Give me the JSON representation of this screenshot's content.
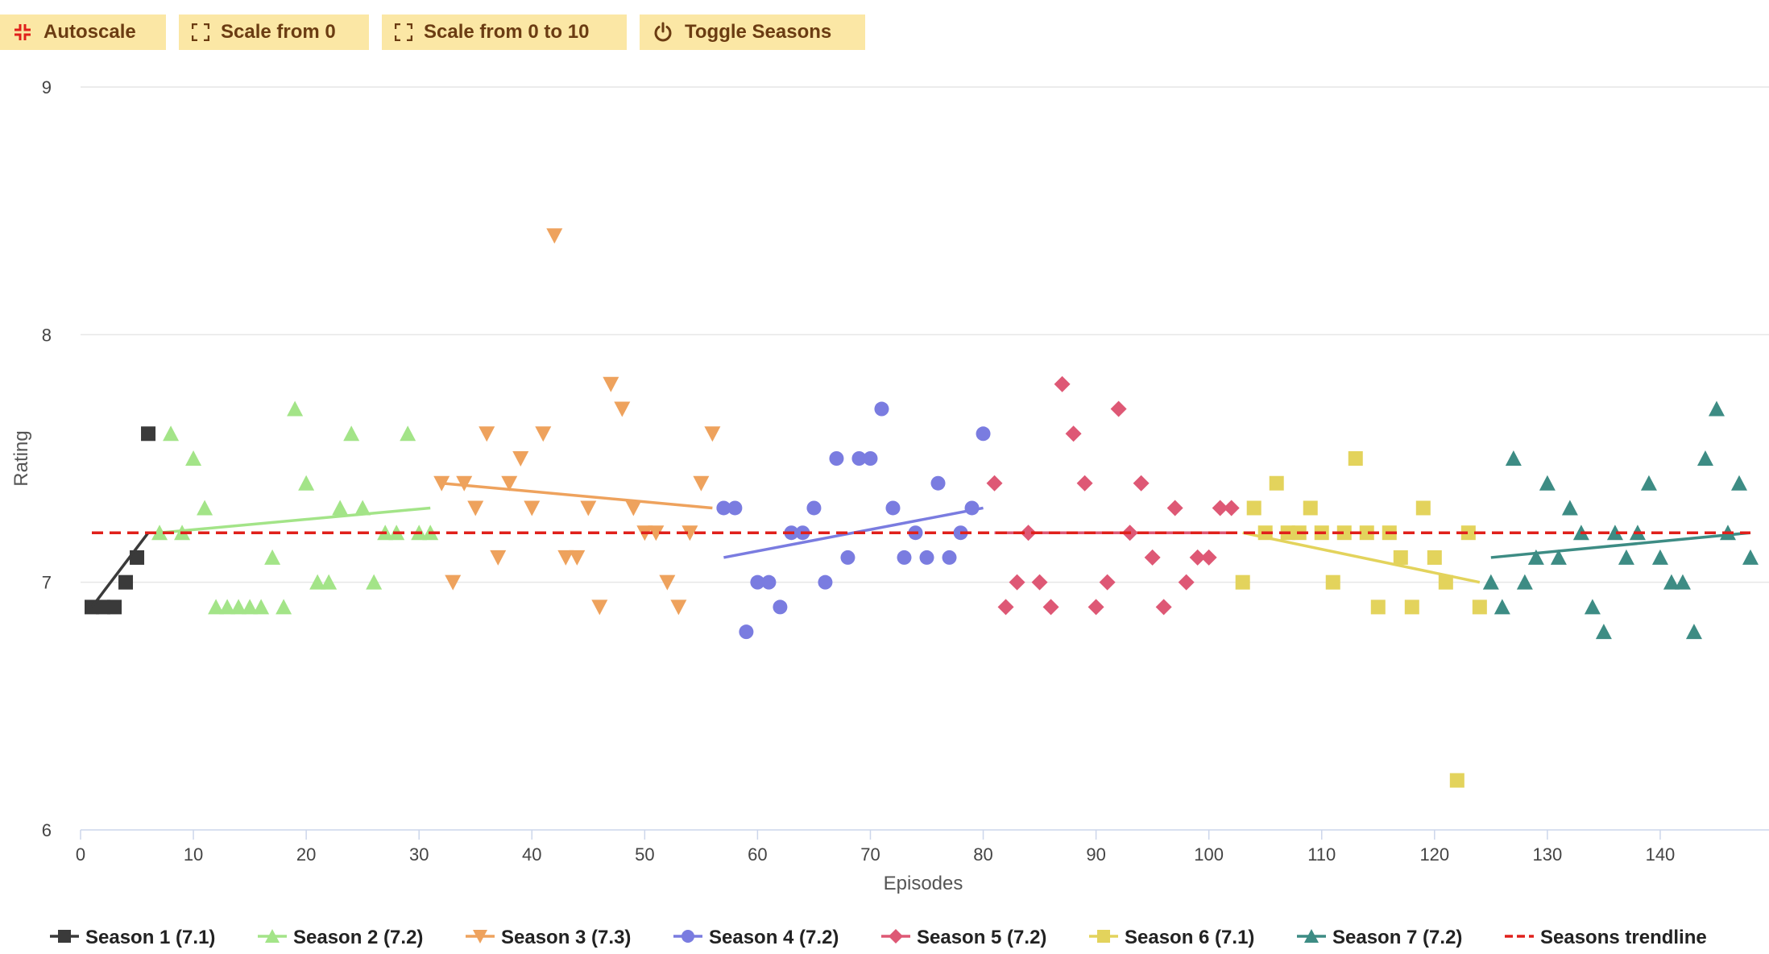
{
  "toolbar": [
    {
      "label": "Autoscale",
      "icon": "shrink-icon"
    },
    {
      "label": "Scale from 0",
      "icon": "expand-icon"
    },
    {
      "label": "Scale from 0 to 10",
      "icon": "expand-icon"
    },
    {
      "label": "Toggle Seasons",
      "icon": "power-icon"
    }
  ],
  "chart_data": {
    "type": "scatter",
    "title": "",
    "xlabel": "Episodes",
    "ylabel": "Rating",
    "xlim": [
      0,
      149
    ],
    "ylim": [
      6,
      9
    ],
    "xticks": [
      0,
      10,
      20,
      30,
      40,
      50,
      60,
      70,
      80,
      90,
      100,
      110,
      120,
      130,
      140
    ],
    "yticks": [
      6,
      7,
      8,
      9
    ],
    "grid": "horizontal",
    "legend_position": "bottom",
    "series": [
      {
        "name": "Season 1 (7.1)",
        "color": "#3a3a3a",
        "marker": "square",
        "points": [
          [
            1,
            6.9
          ],
          [
            2,
            6.9
          ],
          [
            3,
            6.9
          ],
          [
            4,
            7.0
          ],
          [
            5,
            7.1
          ],
          [
            6,
            7.6
          ]
        ],
        "trend": [
          [
            1,
            6.9
          ],
          [
            6,
            7.2
          ]
        ]
      },
      {
        "name": "Season 2 (7.2)",
        "color": "#a3e488",
        "marker": "triangle-up",
        "points": [
          [
            7,
            7.2
          ],
          [
            8,
            7.6
          ],
          [
            9,
            7.2
          ],
          [
            10,
            7.5
          ],
          [
            11,
            7.3
          ],
          [
            12,
            6.9
          ],
          [
            13,
            6.9
          ],
          [
            14,
            6.9
          ],
          [
            15,
            6.9
          ],
          [
            16,
            6.9
          ],
          [
            17,
            7.1
          ],
          [
            18,
            6.9
          ],
          [
            19,
            7.7
          ],
          [
            20,
            7.4
          ],
          [
            21,
            7.0
          ],
          [
            22,
            7.0
          ],
          [
            23,
            7.3
          ],
          [
            24,
            7.6
          ],
          [
            25,
            7.3
          ],
          [
            26,
            7.0
          ],
          [
            27,
            7.2
          ],
          [
            28,
            7.2
          ],
          [
            29,
            7.6
          ],
          [
            30,
            7.2
          ],
          [
            31,
            7.2
          ]
        ],
        "trend": [
          [
            7,
            7.2
          ],
          [
            31,
            7.3
          ]
        ]
      },
      {
        "name": "Season 3 (7.3)",
        "color": "#eea25d",
        "marker": "triangle-down",
        "points": [
          [
            32,
            7.4
          ],
          [
            33,
            7.0
          ],
          [
            34,
            7.4
          ],
          [
            35,
            7.3
          ],
          [
            36,
            7.6
          ],
          [
            37,
            7.1
          ],
          [
            38,
            7.4
          ],
          [
            39,
            7.5
          ],
          [
            40,
            7.3
          ],
          [
            41,
            7.6
          ],
          [
            42,
            8.4
          ],
          [
            43,
            7.1
          ],
          [
            44,
            7.1
          ],
          [
            45,
            7.3
          ],
          [
            46,
            6.9
          ],
          [
            47,
            7.8
          ],
          [
            48,
            7.7
          ],
          [
            49,
            7.3
          ],
          [
            50,
            7.2
          ],
          [
            51,
            7.2
          ],
          [
            52,
            7.0
          ],
          [
            53,
            6.9
          ],
          [
            54,
            7.2
          ],
          [
            55,
            7.4
          ],
          [
            56,
            7.6
          ]
        ],
        "trend": [
          [
            32,
            7.4
          ],
          [
            56,
            7.3
          ]
        ]
      },
      {
        "name": "Season 4 (7.2)",
        "color": "#7a7ce0",
        "marker": "circle",
        "points": [
          [
            57,
            7.3
          ],
          [
            58,
            7.3
          ],
          [
            59,
            6.8
          ],
          [
            60,
            7.0
          ],
          [
            61,
            7.0
          ],
          [
            62,
            6.9
          ],
          [
            63,
            7.2
          ],
          [
            64,
            7.2
          ],
          [
            65,
            7.3
          ],
          [
            66,
            7.0
          ],
          [
            67,
            7.5
          ],
          [
            68,
            7.1
          ],
          [
            69,
            7.5
          ],
          [
            70,
            7.5
          ],
          [
            71,
            7.7
          ],
          [
            72,
            7.3
          ],
          [
            73,
            7.1
          ],
          [
            74,
            7.2
          ],
          [
            75,
            7.1
          ],
          [
            76,
            7.4
          ],
          [
            77,
            7.1
          ],
          [
            78,
            7.2
          ],
          [
            79,
            7.3
          ],
          [
            80,
            7.6
          ]
        ],
        "trend": [
          [
            57,
            7.1
          ],
          [
            80,
            7.3
          ]
        ]
      },
      {
        "name": "Season 5 (7.2)",
        "color": "#de5875",
        "marker": "diamond",
        "points": [
          [
            81,
            7.4
          ],
          [
            82,
            6.9
          ],
          [
            83,
            7.0
          ],
          [
            84,
            7.2
          ],
          [
            85,
            7.0
          ],
          [
            86,
            6.9
          ],
          [
            87,
            7.8
          ],
          [
            88,
            7.6
          ],
          [
            89,
            7.4
          ],
          [
            90,
            6.9
          ],
          [
            91,
            7.0
          ],
          [
            92,
            7.7
          ],
          [
            93,
            7.2
          ],
          [
            94,
            7.4
          ],
          [
            95,
            7.1
          ],
          [
            96,
            6.9
          ],
          [
            97,
            7.3
          ],
          [
            98,
            7.0
          ],
          [
            99,
            7.1
          ],
          [
            100,
            7.1
          ],
          [
            101,
            7.3
          ],
          [
            102,
            7.3
          ]
        ],
        "trend": [
          [
            81,
            7.2
          ],
          [
            102,
            7.2
          ]
        ]
      },
      {
        "name": "Season 6 (7.1)",
        "color": "#e3d35c",
        "marker": "square",
        "points": [
          [
            103,
            7.0
          ],
          [
            104,
            7.3
          ],
          [
            105,
            7.2
          ],
          [
            106,
            7.4
          ],
          [
            107,
            7.2
          ],
          [
            108,
            7.2
          ],
          [
            109,
            7.3
          ],
          [
            110,
            7.2
          ],
          [
            111,
            7.0
          ],
          [
            112,
            7.2
          ],
          [
            113,
            7.5
          ],
          [
            114,
            7.2
          ],
          [
            115,
            6.9
          ],
          [
            116,
            7.2
          ],
          [
            117,
            7.1
          ],
          [
            118,
            6.9
          ],
          [
            119,
            7.3
          ],
          [
            120,
            7.1
          ],
          [
            121,
            7.0
          ],
          [
            122,
            6.2
          ],
          [
            123,
            7.2
          ],
          [
            124,
            6.9
          ]
        ],
        "trend": [
          [
            103,
            7.2
          ],
          [
            124,
            7.0
          ]
        ]
      },
      {
        "name": "Season 7 (7.2)",
        "color": "#3d8c84",
        "marker": "triangle-up",
        "points": [
          [
            125,
            7.0
          ],
          [
            126,
            6.9
          ],
          [
            127,
            7.5
          ],
          [
            128,
            7.0
          ],
          [
            129,
            7.1
          ],
          [
            130,
            7.4
          ],
          [
            131,
            7.1
          ],
          [
            132,
            7.3
          ],
          [
            133,
            7.2
          ],
          [
            134,
            6.9
          ],
          [
            135,
            6.8
          ],
          [
            136,
            7.2
          ],
          [
            137,
            7.1
          ],
          [
            138,
            7.2
          ],
          [
            139,
            7.4
          ],
          [
            140,
            7.1
          ],
          [
            141,
            7.0
          ],
          [
            142,
            7.0
          ],
          [
            143,
            6.8
          ],
          [
            144,
            7.5
          ],
          [
            145,
            7.7
          ],
          [
            146,
            7.2
          ],
          [
            147,
            7.4
          ],
          [
            148,
            7.1
          ]
        ],
        "trend": [
          [
            125,
            7.1
          ],
          [
            148,
            7.2
          ]
        ]
      }
    ],
    "trendline": {
      "name": "Seasons trendline",
      "color": "#e0201b",
      "style": "dashed",
      "points": [
        [
          1,
          7.2
        ],
        [
          148,
          7.2
        ]
      ]
    }
  }
}
